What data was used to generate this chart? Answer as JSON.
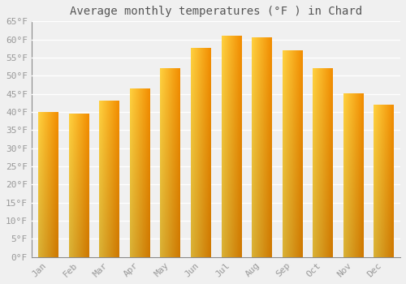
{
  "title": "Average monthly temperatures (°F ) in Chard",
  "months": [
    "Jan",
    "Feb",
    "Mar",
    "Apr",
    "May",
    "Jun",
    "Jul",
    "Aug",
    "Sep",
    "Oct",
    "Nov",
    "Dec"
  ],
  "values": [
    40,
    39.5,
    43,
    46.5,
    52,
    57.5,
    61,
    60.5,
    57,
    52,
    45,
    42
  ],
  "bar_color_main": "#FFA500",
  "bar_color_light": "#FFD050",
  "bar_color_dark": "#E07800",
  "ylim": [
    0,
    65
  ],
  "yticks": [
    0,
    5,
    10,
    15,
    20,
    25,
    30,
    35,
    40,
    45,
    50,
    55,
    60,
    65
  ],
  "ytick_labels": [
    "0°F",
    "5°F",
    "10°F",
    "15°F",
    "20°F",
    "25°F",
    "30°F",
    "35°F",
    "40°F",
    "45°F",
    "50°F",
    "55°F",
    "60°F",
    "65°F"
  ],
  "background_color": "#f0f0f0",
  "grid_color": "#ffffff",
  "title_fontsize": 10,
  "tick_fontsize": 8,
  "font_family": "monospace",
  "bar_width": 0.65
}
